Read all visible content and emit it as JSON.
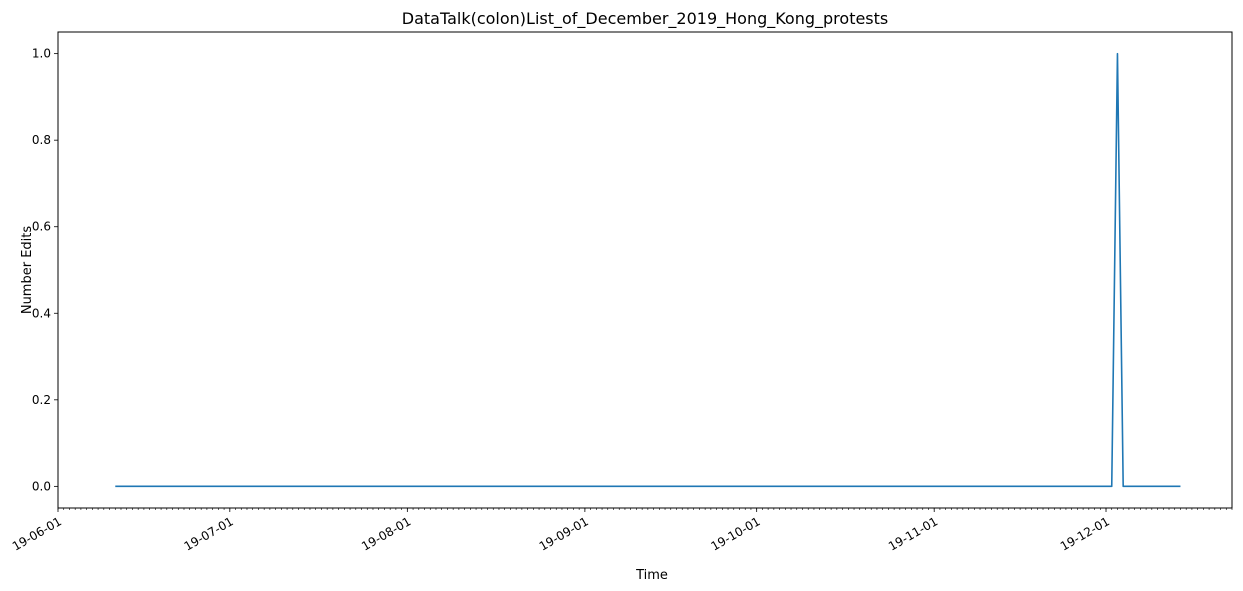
{
  "chart_data": {
    "type": "line",
    "title": "DataTalk(colon)List_of_December_2019_Hong_Kong_protests",
    "xlabel": "Time",
    "ylabel": "Number Edits",
    "x_range": [
      "2019-06-01",
      "2019-12-23"
    ],
    "ylim": [
      -0.05,
      1.05
    ],
    "x_tick_labels": [
      {
        "date": "2019-06-01",
        "label": "19-06-01"
      },
      {
        "date": "2019-07-01",
        "label": "19-07-01"
      },
      {
        "date": "2019-08-01",
        "label": "19-08-01"
      },
      {
        "date": "2019-09-01",
        "label": "19-09-01"
      },
      {
        "date": "2019-10-01",
        "label": "19-10-01"
      },
      {
        "date": "2019-11-01",
        "label": "19-11-01"
      },
      {
        "date": "2019-12-01",
        "label": "19-12-01"
      }
    ],
    "y_ticks": [
      {
        "value": 0.0,
        "label": "0.0"
      },
      {
        "value": 0.2,
        "label": "0.2"
      },
      {
        "value": 0.4,
        "label": "0.4"
      },
      {
        "value": 0.6,
        "label": "0.6"
      },
      {
        "value": 0.8,
        "label": "0.8"
      },
      {
        "value": 1.0,
        "label": "1.0"
      }
    ],
    "grid": false,
    "series": [
      {
        "color": "#1f77b4",
        "x": [
          "2019-06-11",
          "2019-12-02",
          "2019-12-03",
          "2019-12-04",
          "2019-12-14"
        ],
        "y": [
          0,
          0,
          1,
          0,
          0
        ]
      }
    ]
  }
}
